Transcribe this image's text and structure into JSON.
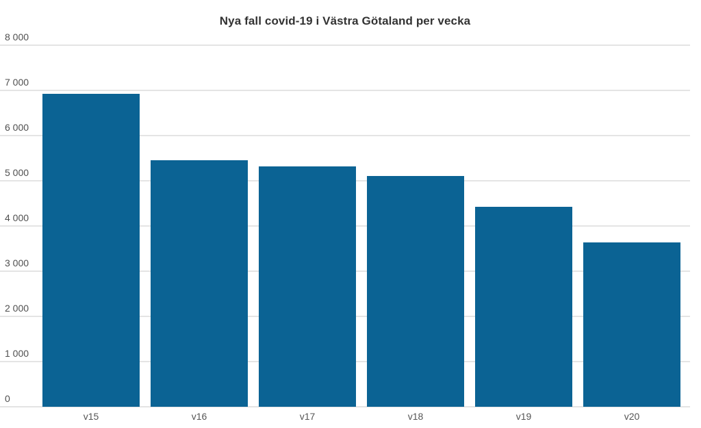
{
  "title": "Nya fall covid-19 i Västra Götaland per vecka",
  "colors": {
    "bar": "#0b6394",
    "grid": "#e4e4e4",
    "title_text": "#333333",
    "axis_text": "#4f4f4f",
    "background": "#ffffff"
  },
  "chart_data": {
    "type": "bar",
    "title": "Nya fall covid-19 i Västra Götaland per vecka",
    "categories": [
      "v15",
      "v16",
      "v17",
      "v18",
      "v19",
      "v20"
    ],
    "values": [
      6930,
      5460,
      5320,
      5100,
      4420,
      3640
    ],
    "xlabel": "",
    "ylabel": "",
    "ylim": [
      0,
      8000
    ],
    "ytick_interval": 1000,
    "ytick_labels": [
      "0",
      "1 000",
      "2 000",
      "3 000",
      "4 000",
      "5 000",
      "6 000",
      "7 000",
      "8 000"
    ],
    "grid": true,
    "legend": false,
    "bar_color": "#0b6394"
  }
}
